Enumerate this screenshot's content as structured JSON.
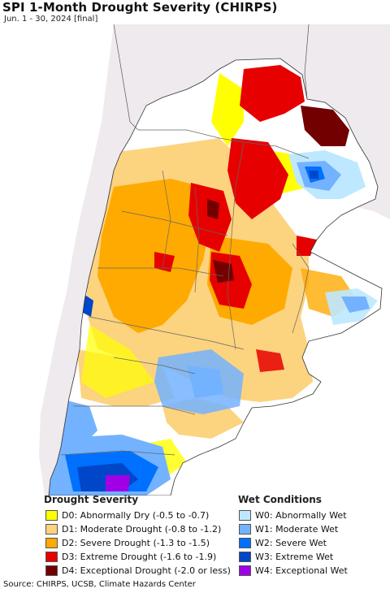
{
  "title": "SPI 1-Month Drought Severity (CHIRPS)",
  "subtitle": "Jun. 1 - 30, 2024 [final]",
  "legend": {
    "drought_title": "Drought Severity",
    "wet_title": "Wet Conditions",
    "drought": [
      {
        "label": "D0: Abnormally Dry (-0.5 to -0.7)",
        "color": "#ffff00"
      },
      {
        "label": "D1: Moderate Drought (-0.8 to -1.2)",
        "color": "#fcd37f"
      },
      {
        "label": "D2: Severe Drought (-1.3 to -1.5)",
        "color": "#ffaa00"
      },
      {
        "label": "D3: Extreme Drought (-1.6 to -1.9)",
        "color": "#e60000"
      },
      {
        "label": "D4: Exceptional Drought (-2.0 or less)",
        "color": "#730000"
      }
    ],
    "wet": [
      {
        "label": "W0: Abnormally Wet",
        "color": "#bee8ff"
      },
      {
        "label": "W1: Moderate Wet",
        "color": "#73b2ff"
      },
      {
        "label": "W2: Severe Wet",
        "color": "#0070ff"
      },
      {
        "label": "W3: Extreme Wet",
        "color": "#0046c8"
      },
      {
        "label": "W4: Exceptional Wet",
        "color": "#a000e6"
      }
    ]
  },
  "source": "Source: CHIRPS, UCSB, Climate Hazards Center",
  "colors": {
    "ocean": "#ffffff",
    "outside_region": "#eeeaee",
    "borders": "#555555"
  }
}
